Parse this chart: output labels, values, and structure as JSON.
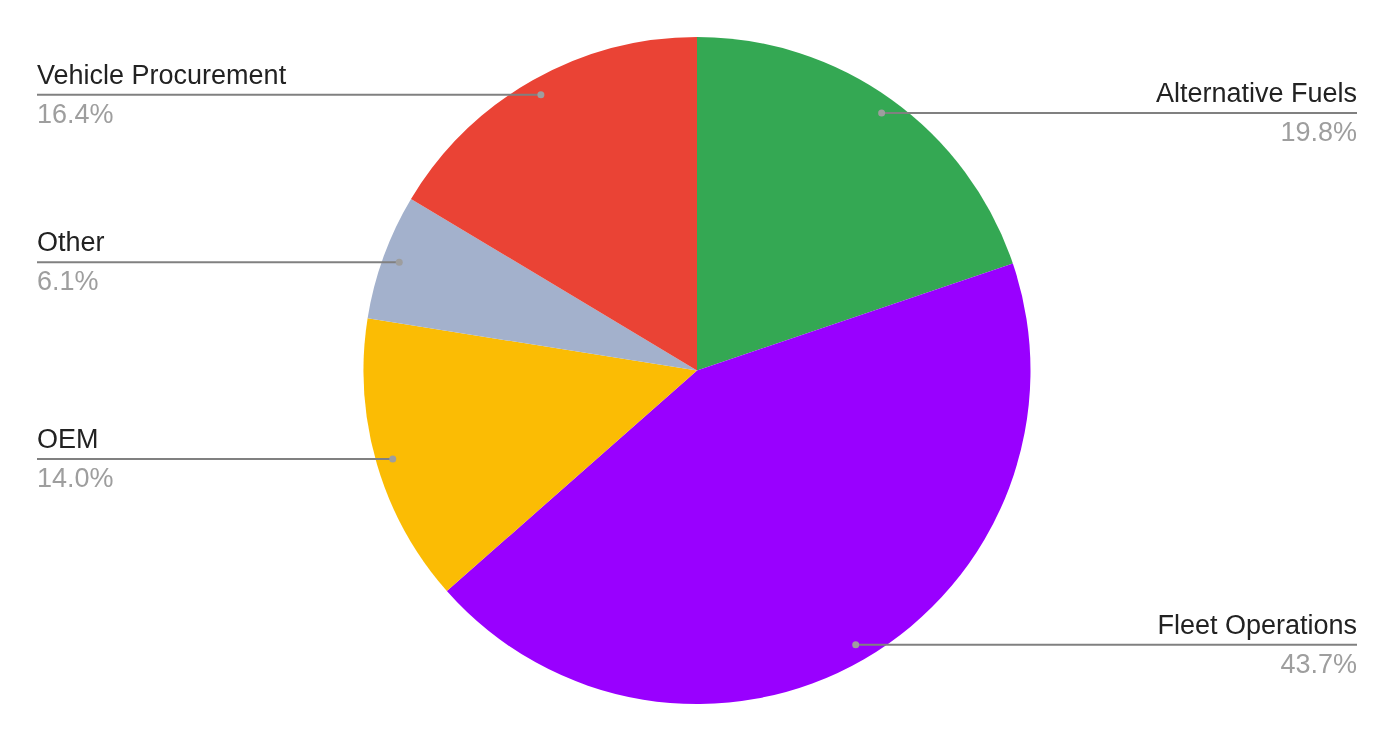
{
  "chart_data": {
    "type": "pie",
    "categories": [
      "Alternative Fuels",
      "Fleet Operations",
      "OEM",
      "Other",
      "Vehicle Procurement"
    ],
    "values": [
      19.8,
      43.7,
      14.0,
      6.1,
      16.4
    ],
    "colors": [
      "#34a853",
      "#9900ff",
      "#fbbc04",
      "#a3b1cc",
      "#ea4335"
    ],
    "value_labels": [
      "19.8%",
      "43.7%",
      "14.0%",
      "6.1%",
      "16.4%"
    ],
    "legend": false
  }
}
